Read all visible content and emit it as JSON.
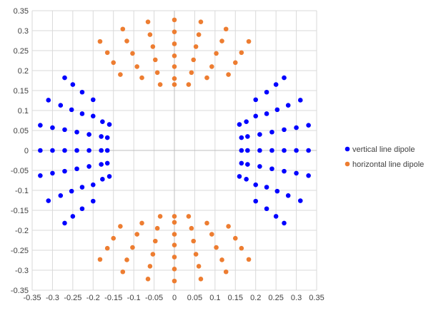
{
  "chart_data": {
    "type": "scatter",
    "title": "",
    "xlabel": "",
    "ylabel": "",
    "xlim": [
      -0.35,
      0.35
    ],
    "ylim": [
      -0.35,
      0.35
    ],
    "x_ticks": [
      -0.35,
      -0.3,
      -0.25,
      -0.2,
      -0.15,
      -0.1,
      -0.05,
      0,
      0.05,
      0.1,
      0.15,
      0.2,
      0.25,
      0.3,
      0.35
    ],
    "y_ticks": [
      -0.35,
      -0.3,
      -0.25,
      -0.2,
      -0.15,
      -0.1,
      -0.05,
      0,
      0.05,
      0.1,
      0.15,
      0.2,
      0.25,
      0.3,
      0.35
    ],
    "x_tick_labels": [
      "-0.35",
      "-0.3",
      "-0.25",
      "-0.2",
      "-0.15",
      "-0.1",
      "-0.05",
      "0",
      "0.05",
      "0.1",
      "0.15",
      "0.2",
      "0.25",
      "0.3",
      "0.35"
    ],
    "y_tick_labels": [
      "-0.35",
      "-0.3",
      "-0.25",
      "-0.2",
      "-0.15",
      "-0.1",
      "-0.05",
      "0",
      "0.05",
      "0.1",
      "0.15",
      "0.2",
      "0.25",
      "0.3",
      "0.35"
    ],
    "grid": true,
    "legend_position": "right",
    "series": [
      {
        "name": "vertical line dipole",
        "color": "#0000ff",
        "points": [
          [
            -0.33,
            0
          ],
          [
            -0.3,
            0
          ],
          [
            -0.27,
            0
          ],
          [
            -0.24,
            0
          ],
          [
            -0.21,
            0
          ],
          [
            -0.18,
            0
          ],
          [
            -0.165,
            0
          ],
          [
            -0.33,
            0.063
          ],
          [
            -0.3,
            0.057
          ],
          [
            -0.27,
            0.052
          ],
          [
            -0.24,
            0.046
          ],
          [
            -0.21,
            0.04
          ],
          [
            -0.18,
            0.035
          ],
          [
            -0.165,
            0.032
          ],
          [
            -0.31,
            0.126
          ],
          [
            -0.28,
            0.113
          ],
          [
            -0.253,
            0.102
          ],
          [
            -0.227,
            0.092
          ],
          [
            -0.2,
            0.086
          ],
          [
            -0.177,
            0.072
          ],
          [
            -0.16,
            0.065
          ],
          [
            -0.27,
            0.182
          ],
          [
            -0.25,
            0.165
          ],
          [
            -0.227,
            0.146
          ],
          [
            -0.2,
            0.127
          ],
          [
            -0.33,
            -0.063
          ],
          [
            -0.3,
            -0.057
          ],
          [
            -0.27,
            -0.052
          ],
          [
            -0.24,
            -0.046
          ],
          [
            -0.21,
            -0.04
          ],
          [
            -0.18,
            -0.035
          ],
          [
            -0.165,
            -0.032
          ],
          [
            -0.31,
            -0.126
          ],
          [
            -0.28,
            -0.113
          ],
          [
            -0.253,
            -0.102
          ],
          [
            -0.227,
            -0.092
          ],
          [
            -0.2,
            -0.086
          ],
          [
            -0.177,
            -0.072
          ],
          [
            -0.16,
            -0.065
          ],
          [
            -0.27,
            -0.182
          ],
          [
            -0.25,
            -0.165
          ],
          [
            -0.227,
            -0.146
          ],
          [
            -0.2,
            -0.127
          ],
          [
            0.33,
            0
          ],
          [
            0.3,
            0
          ],
          [
            0.27,
            0
          ],
          [
            0.24,
            0
          ],
          [
            0.21,
            0
          ],
          [
            0.18,
            0
          ],
          [
            0.165,
            0
          ],
          [
            0.33,
            0.063
          ],
          [
            0.3,
            0.057
          ],
          [
            0.27,
            0.052
          ],
          [
            0.24,
            0.046
          ],
          [
            0.21,
            0.04
          ],
          [
            0.18,
            0.035
          ],
          [
            0.165,
            0.032
          ],
          [
            0.31,
            0.126
          ],
          [
            0.28,
            0.113
          ],
          [
            0.253,
            0.102
          ],
          [
            0.227,
            0.092
          ],
          [
            0.2,
            0.086
          ],
          [
            0.177,
            0.072
          ],
          [
            0.16,
            0.065
          ],
          [
            0.27,
            0.182
          ],
          [
            0.25,
            0.165
          ],
          [
            0.227,
            0.146
          ],
          [
            0.2,
            0.127
          ],
          [
            0.33,
            -0.063
          ],
          [
            0.3,
            -0.057
          ],
          [
            0.27,
            -0.052
          ],
          [
            0.24,
            -0.046
          ],
          [
            0.21,
            -0.04
          ],
          [
            0.18,
            -0.035
          ],
          [
            0.165,
            -0.032
          ],
          [
            0.31,
            -0.126
          ],
          [
            0.28,
            -0.113
          ],
          [
            0.253,
            -0.102
          ],
          [
            0.227,
            -0.092
          ],
          [
            0.2,
            -0.086
          ],
          [
            0.177,
            -0.072
          ],
          [
            0.16,
            -0.065
          ],
          [
            0.27,
            -0.182
          ],
          [
            0.25,
            -0.165
          ],
          [
            0.227,
            -0.146
          ],
          [
            0.2,
            -0.127
          ]
        ]
      },
      {
        "name": "horizontal line dipole",
        "color": "#ed7d31",
        "points": [
          [
            0,
            0.327
          ],
          [
            0,
            0.297
          ],
          [
            0,
            0.267
          ],
          [
            0,
            0.237
          ],
          [
            0,
            0.21
          ],
          [
            0,
            0.18
          ],
          [
            0,
            0.165
          ],
          [
            -0.065,
            0.322
          ],
          [
            -0.06,
            0.29
          ],
          [
            -0.053,
            0.26
          ],
          [
            -0.047,
            0.227
          ],
          [
            -0.042,
            0.195
          ],
          [
            -0.035,
            0.165
          ],
          [
            0.065,
            0.322
          ],
          [
            0.06,
            0.29
          ],
          [
            0.053,
            0.26
          ],
          [
            0.047,
            0.227
          ],
          [
            0.042,
            0.195
          ],
          [
            0.035,
            0.165
          ],
          [
            -0.127,
            0.304
          ],
          [
            -0.117,
            0.274
          ],
          [
            -0.103,
            0.243
          ],
          [
            -0.092,
            0.21
          ],
          [
            -0.08,
            0.182
          ],
          [
            0.127,
            0.304
          ],
          [
            0.117,
            0.274
          ],
          [
            0.103,
            0.243
          ],
          [
            0.092,
            0.21
          ],
          [
            0.08,
            0.182
          ],
          [
            -0.183,
            0.273
          ],
          [
            -0.165,
            0.245
          ],
          [
            -0.15,
            0.22
          ],
          [
            -0.133,
            0.19
          ],
          [
            0.183,
            0.273
          ],
          [
            0.165,
            0.245
          ],
          [
            0.15,
            0.22
          ],
          [
            0.133,
            0.19
          ],
          [
            0,
            -0.327
          ],
          [
            0,
            -0.297
          ],
          [
            0,
            -0.267
          ],
          [
            0,
            -0.237
          ],
          [
            0,
            -0.21
          ],
          [
            0,
            -0.18
          ],
          [
            0,
            -0.165
          ],
          [
            -0.065,
            -0.322
          ],
          [
            -0.06,
            -0.29
          ],
          [
            -0.053,
            -0.26
          ],
          [
            -0.047,
            -0.227
          ],
          [
            -0.042,
            -0.195
          ],
          [
            -0.035,
            -0.165
          ],
          [
            0.065,
            -0.322
          ],
          [
            0.06,
            -0.29
          ],
          [
            0.053,
            -0.26
          ],
          [
            0.047,
            -0.227
          ],
          [
            0.042,
            -0.195
          ],
          [
            0.035,
            -0.165
          ],
          [
            -0.127,
            -0.304
          ],
          [
            -0.117,
            -0.274
          ],
          [
            -0.103,
            -0.243
          ],
          [
            -0.092,
            -0.21
          ],
          [
            -0.08,
            -0.182
          ],
          [
            0.127,
            -0.304
          ],
          [
            0.117,
            -0.274
          ],
          [
            0.103,
            -0.243
          ],
          [
            0.092,
            -0.21
          ],
          [
            0.08,
            -0.182
          ],
          [
            -0.183,
            -0.273
          ],
          [
            -0.165,
            -0.245
          ],
          [
            -0.15,
            -0.22
          ],
          [
            -0.133,
            -0.19
          ],
          [
            0.183,
            -0.273
          ],
          [
            0.165,
            -0.245
          ],
          [
            0.15,
            -0.22
          ],
          [
            0.133,
            -0.19
          ]
        ]
      }
    ]
  }
}
